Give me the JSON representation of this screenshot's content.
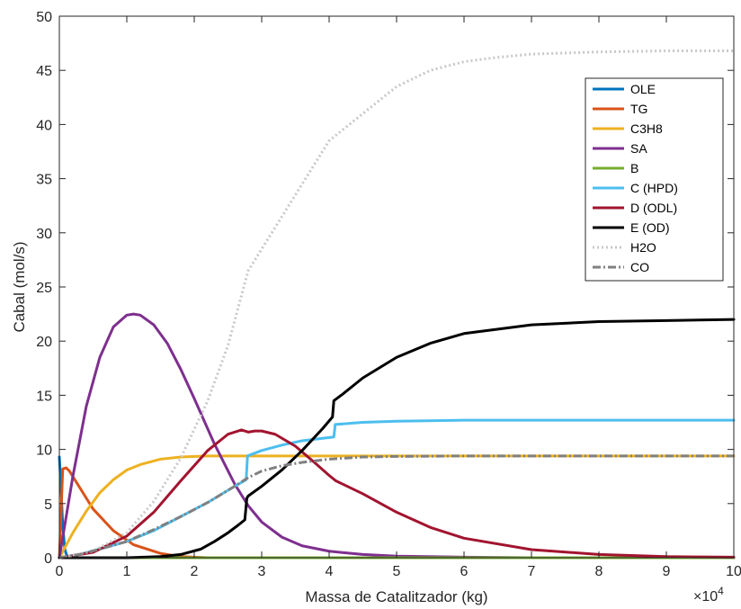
{
  "chart_data": {
    "type": "line",
    "title": "",
    "xlabel": "Massa de Catalitzador (kg)",
    "ylabel": "Cabal (mol/s)",
    "x_exponent_base": "×10",
    "x_exponent_power": "4",
    "xlim": [
      0,
      10
    ],
    "ylim": [
      0,
      50
    ],
    "x_ticks": [
      0,
      1,
      2,
      3,
      4,
      5,
      6,
      7,
      8,
      9,
      10
    ],
    "y_ticks": [
      0,
      5,
      10,
      15,
      20,
      25,
      30,
      35,
      40,
      45,
      50
    ],
    "grid": false,
    "legend_position": "top-right",
    "series": [
      {
        "name": "OLE",
        "color": "#0072BD",
        "dash": "solid",
        "x": [
          0,
          0.02,
          0.05,
          0.08,
          0.12
        ],
        "y": [
          9.3,
          7.0,
          3.0,
          0.8,
          0
        ]
      },
      {
        "name": "TG",
        "color": "#D95319",
        "dash": "solid",
        "x": [
          0,
          0.05,
          0.1,
          0.15,
          0.3,
          0.5,
          0.8,
          1.1,
          1.5,
          1.8,
          2.2,
          10
        ],
        "y": [
          0,
          8.2,
          8.3,
          8.0,
          6.5,
          4.5,
          2.5,
          1.2,
          0.4,
          0.1,
          0,
          0
        ]
      },
      {
        "name": "C3H8",
        "color": "#EDB120",
        "dash": "solid",
        "x": [
          0,
          0.2,
          0.4,
          0.6,
          0.8,
          1.0,
          1.2,
          1.5,
          1.8,
          2.2,
          2.6,
          3.0,
          10
        ],
        "y": [
          0,
          2.3,
          4.3,
          6.0,
          7.2,
          8.1,
          8.6,
          9.1,
          9.3,
          9.4,
          9.4,
          9.4,
          9.4
        ]
      },
      {
        "name": "SA",
        "color": "#7E2F8E",
        "dash": "solid",
        "x": [
          0,
          0.2,
          0.4,
          0.6,
          0.8,
          1.0,
          1.1,
          1.2,
          1.4,
          1.6,
          1.8,
          2.0,
          2.3,
          2.6,
          2.8,
          3.0,
          3.3,
          3.6,
          4.0,
          4.5,
          5.0,
          6.0,
          7.0,
          8.0,
          10.0
        ],
        "y": [
          0,
          7.5,
          14.0,
          18.5,
          21.3,
          22.4,
          22.5,
          22.4,
          21.5,
          19.8,
          17.4,
          14.7,
          10.5,
          6.8,
          4.8,
          3.3,
          1.9,
          1.1,
          0.6,
          0.3,
          0.15,
          0.05,
          0,
          0,
          0
        ]
      },
      {
        "name": "B",
        "color": "#77AC30",
        "dash": "solid",
        "x": [
          0,
          10
        ],
        "y": [
          0,
          0
        ]
      },
      {
        "name": "C (HPD)",
        "color": "#4DBEEE",
        "dash": "solid",
        "x": [
          0,
          0.3,
          0.6,
          1.0,
          1.4,
          1.8,
          2.2,
          2.6,
          2.77,
          2.79,
          3.0,
          3.3,
          3.6,
          4.0,
          4.07,
          4.09,
          4.5,
          5.0,
          6.0,
          7.0,
          10.0
        ],
        "y": [
          0,
          0.3,
          0.8,
          1.5,
          2.5,
          3.8,
          5.1,
          6.6,
          7.2,
          9.4,
          9.9,
          10.4,
          10.8,
          11.1,
          11.15,
          12.3,
          12.5,
          12.6,
          12.7,
          12.7,
          12.7
        ]
      },
      {
        "name": "D (ODL)",
        "color": "#A2142F",
        "dash": "solid",
        "x": [
          0,
          0.5,
          1.0,
          1.4,
          1.8,
          2.2,
          2.5,
          2.7,
          2.8,
          2.9,
          3.0,
          3.2,
          3.5,
          3.8,
          4.0,
          4.1,
          4.5,
          5.0,
          5.5,
          6.0,
          7.0,
          8.0,
          9.0,
          10.0
        ],
        "y": [
          0,
          0.5,
          2.0,
          4.2,
          7.1,
          9.9,
          11.4,
          11.8,
          11.6,
          11.7,
          11.7,
          11.4,
          10.3,
          8.7,
          7.6,
          7.1,
          5.9,
          4.2,
          2.8,
          1.8,
          0.75,
          0.3,
          0.1,
          0.05
        ]
      },
      {
        "name": "E (OD)",
        "color": "#000000",
        "dash": "solid",
        "x": [
          0,
          1.0,
          1.5,
          1.8,
          2.1,
          2.3,
          2.5,
          2.65,
          2.75,
          2.78,
          2.8,
          3.0,
          3.3,
          3.6,
          3.9,
          4.05,
          4.07,
          4.2,
          4.5,
          5.0,
          5.5,
          6.0,
          7.0,
          8.0,
          9.0,
          10.0
        ],
        "y": [
          0,
          0,
          0.1,
          0.3,
          0.8,
          1.5,
          2.3,
          3.0,
          3.5,
          5.5,
          5.7,
          6.6,
          8.1,
          9.9,
          11.9,
          13.0,
          14.5,
          15.1,
          16.6,
          18.5,
          19.8,
          20.7,
          21.5,
          21.8,
          21.9,
          22.0
        ]
      },
      {
        "name": "H2O",
        "color": "#C8C8C8",
        "dash": "dotted",
        "x": [
          0,
          0.5,
          1.0,
          1.4,
          1.8,
          2.2,
          2.5,
          2.8,
          3.1,
          3.4,
          3.7,
          4.0,
          4.3,
          4.7,
          5.0,
          5.5,
          6.0,
          6.5,
          7.0,
          8.0,
          9.0,
          10.0
        ],
        "y": [
          0,
          0.6,
          2.3,
          5.2,
          9.2,
          14.5,
          19.6,
          26.5,
          29.5,
          32.5,
          35.5,
          38.5,
          40.0,
          42.0,
          43.5,
          45.0,
          45.8,
          46.2,
          46.5,
          46.7,
          46.8,
          46.8
        ]
      },
      {
        "name": "CO",
        "color": "#808080",
        "dash": "dashdot",
        "x": [
          0,
          0.3,
          0.6,
          1.0,
          1.4,
          1.8,
          2.2,
          2.6,
          2.8,
          3.0,
          3.3,
          3.6,
          4.0,
          4.5,
          5.0,
          6.0,
          7.0,
          8.0,
          9.0,
          10.0
        ],
        "y": [
          0,
          0.3,
          0.8,
          1.5,
          2.6,
          3.8,
          5.1,
          6.6,
          7.4,
          8.0,
          8.5,
          8.8,
          9.1,
          9.3,
          9.35,
          9.4,
          9.4,
          9.4,
          9.4,
          9.4
        ]
      }
    ]
  }
}
